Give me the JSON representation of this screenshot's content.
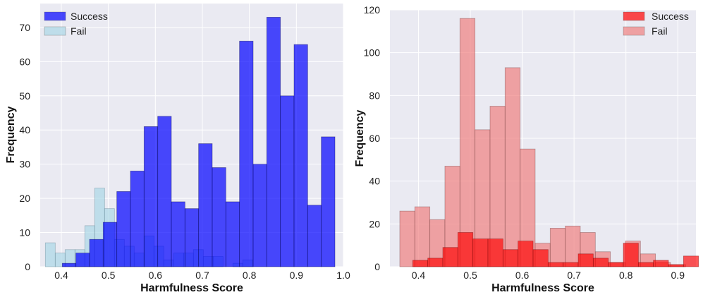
{
  "chart_data": [
    {
      "type": "bar",
      "subtype": "overlaid-histogram",
      "title": "",
      "xlabel": "Harmfulness Score",
      "ylabel": "Frequency",
      "xlim": [
        0.355,
        1.0
      ],
      "ylim": [
        0,
        77
      ],
      "xticks": [
        0.4,
        0.5,
        0.6,
        0.7,
        0.8,
        0.9,
        1.0
      ],
      "xtick_labels": [
        "0.4",
        "0.5",
        "0.6",
        "0.7",
        "0.8",
        "0.9",
        "1.0"
      ],
      "yticks": [
        0,
        10,
        20,
        30,
        40,
        50,
        60,
        70
      ],
      "legend": {
        "position": "top-left"
      },
      "grid": true,
      "series": [
        {
          "name": "Fail",
          "color": "#add8e6",
          "edge": "#5a7f8f",
          "opacity": 0.72,
          "bins": [
            [
              0.366,
              0.387,
              7
            ],
            [
              0.387,
              0.408,
              4
            ],
            [
              0.408,
              0.429,
              5
            ],
            [
              0.429,
              0.45,
              5
            ],
            [
              0.45,
              0.471,
              12
            ],
            [
              0.471,
              0.492,
              23
            ],
            [
              0.492,
              0.513,
              17
            ],
            [
              0.513,
              0.534,
              8
            ],
            [
              0.534,
              0.555,
              6
            ],
            [
              0.555,
              0.576,
              4
            ],
            [
              0.576,
              0.597,
              9
            ],
            [
              0.597,
              0.618,
              6
            ],
            [
              0.618,
              0.639,
              2
            ],
            [
              0.639,
              0.66,
              4
            ],
            [
              0.66,
              0.681,
              4
            ],
            [
              0.681,
              0.702,
              5
            ],
            [
              0.702,
              0.723,
              3
            ],
            [
              0.723,
              0.744,
              3
            ],
            [
              0.765,
              0.786,
              1
            ],
            [
              0.786,
              0.807,
              2
            ]
          ]
        },
        {
          "name": "Success",
          "color": "#0000ff",
          "edge": "#00004a",
          "opacity": 0.7,
          "bins": [
            [
              0.402,
              0.431,
              1
            ],
            [
              0.431,
              0.46,
              4
            ],
            [
              0.46,
              0.489,
              8
            ],
            [
              0.489,
              0.518,
              13
            ],
            [
              0.518,
              0.547,
              22
            ],
            [
              0.547,
              0.576,
              28
            ],
            [
              0.576,
              0.605,
              41
            ],
            [
              0.605,
              0.634,
              44
            ],
            [
              0.634,
              0.663,
              19
            ],
            [
              0.663,
              0.692,
              17
            ],
            [
              0.692,
              0.721,
              36
            ],
            [
              0.721,
              0.75,
              29
            ],
            [
              0.75,
              0.779,
              19
            ],
            [
              0.779,
              0.808,
              66
            ],
            [
              0.808,
              0.837,
              30
            ],
            [
              0.837,
              0.866,
              73
            ],
            [
              0.866,
              0.895,
              50
            ],
            [
              0.895,
              0.924,
              65
            ],
            [
              0.924,
              0.953,
              18
            ],
            [
              0.953,
              0.982,
              38
            ]
          ]
        }
      ],
      "legend_entries": [
        {
          "label": "Success",
          "color": "#0000ff",
          "opacity": 0.7
        },
        {
          "label": "Fail",
          "color": "#add8e6",
          "opacity": 0.72
        }
      ]
    },
    {
      "type": "bar",
      "subtype": "overlaid-histogram",
      "title": "",
      "xlabel": "Harmfulness Score",
      "ylabel": "Frequency",
      "xlim": [
        0.345,
        0.935
      ],
      "ylim": [
        0,
        120
      ],
      "xticks": [
        0.4,
        0.5,
        0.6,
        0.7,
        0.8,
        0.9
      ],
      "xtick_labels": [
        "0.4",
        "0.5",
        "0.6",
        "0.7",
        "0.8",
        "0.9"
      ],
      "yticks": [
        0,
        20,
        40,
        60,
        80,
        100,
        120
      ],
      "legend": {
        "position": "top-right"
      },
      "grid": true,
      "series": [
        {
          "name": "Fail",
          "color": "#f08080",
          "edge": "#6e3a3a",
          "opacity": 0.7,
          "bins": [
            [
              0.364,
              0.393,
              26
            ],
            [
              0.393,
              0.422,
              28
            ],
            [
              0.422,
              0.451,
              22
            ],
            [
              0.451,
              0.48,
              47
            ],
            [
              0.48,
              0.509,
              116
            ],
            [
              0.509,
              0.538,
              64
            ],
            [
              0.538,
              0.567,
              75
            ],
            [
              0.567,
              0.596,
              93
            ],
            [
              0.596,
              0.625,
              55
            ],
            [
              0.625,
              0.654,
              11
            ],
            [
              0.654,
              0.683,
              18
            ],
            [
              0.683,
              0.712,
              19
            ],
            [
              0.712,
              0.741,
              16
            ],
            [
              0.741,
              0.77,
              7
            ],
            [
              0.77,
              0.799,
              2
            ],
            [
              0.799,
              0.828,
              12
            ],
            [
              0.828,
              0.857,
              6
            ],
            [
              0.857,
              0.886,
              2
            ],
            [
              0.886,
              0.915,
              1
            ]
          ]
        },
        {
          "name": "Success",
          "color": "#ff0000",
          "edge": "#6e0000",
          "opacity": 0.66,
          "bins": [
            [
              0.389,
              0.418,
              3
            ],
            [
              0.418,
              0.447,
              4
            ],
            [
              0.447,
              0.476,
              9
            ],
            [
              0.476,
              0.505,
              16
            ],
            [
              0.505,
              0.534,
              13
            ],
            [
              0.534,
              0.563,
              13
            ],
            [
              0.563,
              0.592,
              8
            ],
            [
              0.592,
              0.621,
              12
            ],
            [
              0.621,
              0.65,
              8
            ],
            [
              0.65,
              0.679,
              2
            ],
            [
              0.679,
              0.708,
              2
            ],
            [
              0.708,
              0.737,
              6
            ],
            [
              0.737,
              0.766,
              4
            ],
            [
              0.766,
              0.795,
              2
            ],
            [
              0.795,
              0.824,
              11
            ],
            [
              0.824,
              0.853,
              2
            ],
            [
              0.853,
              0.882,
              3
            ],
            [
              0.882,
              0.911,
              1
            ],
            [
              0.911,
              0.94,
              5
            ]
          ]
        }
      ],
      "legend_entries": [
        {
          "label": "Success",
          "color": "#ff0000",
          "opacity": 0.7
        },
        {
          "label": "Fail",
          "color": "#f08080",
          "opacity": 0.7
        }
      ]
    }
  ],
  "style": {
    "plot_background": "#eaeaf2",
    "grid_color": "#ffffff"
  }
}
